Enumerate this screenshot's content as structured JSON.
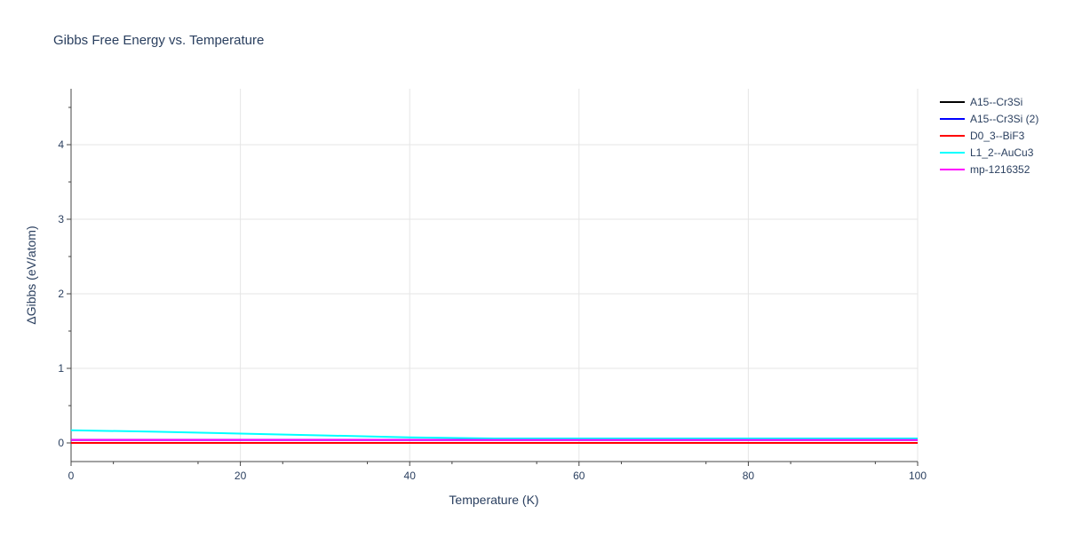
{
  "chart_data": {
    "type": "line",
    "title": "Gibbs Free Energy vs. Temperature",
    "xlabel": "Temperature (K)",
    "ylabel": "ΔGibbs (eV/atom)",
    "xlim": [
      0,
      100
    ],
    "ylim": [
      -0.25,
      4.75
    ],
    "xticks": [
      0,
      20,
      40,
      60,
      80,
      100
    ],
    "yticks": [
      0,
      1,
      2,
      3,
      4
    ],
    "grid": true,
    "legend_position": "right",
    "series": [
      {
        "name": "A15--Cr3Si",
        "color": "#000000",
        "x": [
          0,
          10,
          20,
          30,
          40,
          50,
          60,
          70,
          80,
          90,
          100
        ],
        "y": [
          0.04,
          0.04,
          0.04,
          0.04,
          0.04,
          0.04,
          0.04,
          0.04,
          0.04,
          0.04,
          0.04
        ]
      },
      {
        "name": "A15--Cr3Si (2)",
        "color": "#0000ff",
        "x": [
          0,
          10,
          20,
          30,
          40,
          50,
          60,
          70,
          80,
          90,
          100
        ],
        "y": [
          0.04,
          0.04,
          0.04,
          0.04,
          0.04,
          0.04,
          0.04,
          0.04,
          0.04,
          0.04,
          0.04
        ]
      },
      {
        "name": "D0_3--BiF3",
        "color": "#ff0000",
        "x": [
          0,
          10,
          20,
          30,
          40,
          50,
          60,
          70,
          80,
          90,
          100
        ],
        "y": [
          0,
          0,
          0,
          0,
          0,
          0,
          0,
          0,
          0,
          0,
          0
        ]
      },
      {
        "name": "L1_2--AuCu3",
        "color": "#00ffff",
        "x": [
          0,
          10,
          20,
          30,
          40,
          50,
          60,
          70,
          80,
          90,
          100
        ],
        "y": [
          0.17,
          0.15,
          0.125,
          0.1,
          0.075,
          0.06,
          0.06,
          0.06,
          0.06,
          0.06,
          0.06
        ]
      },
      {
        "name": "mp-1216352",
        "color": "#ff00ff",
        "x": [
          0,
          10,
          20,
          30,
          40,
          50,
          60,
          70,
          80,
          90,
          100
        ],
        "y": [
          0.04,
          0.04,
          0.04,
          0.04,
          0.04,
          0.04,
          0.04,
          0.04,
          0.04,
          0.04,
          0.04
        ]
      }
    ]
  }
}
